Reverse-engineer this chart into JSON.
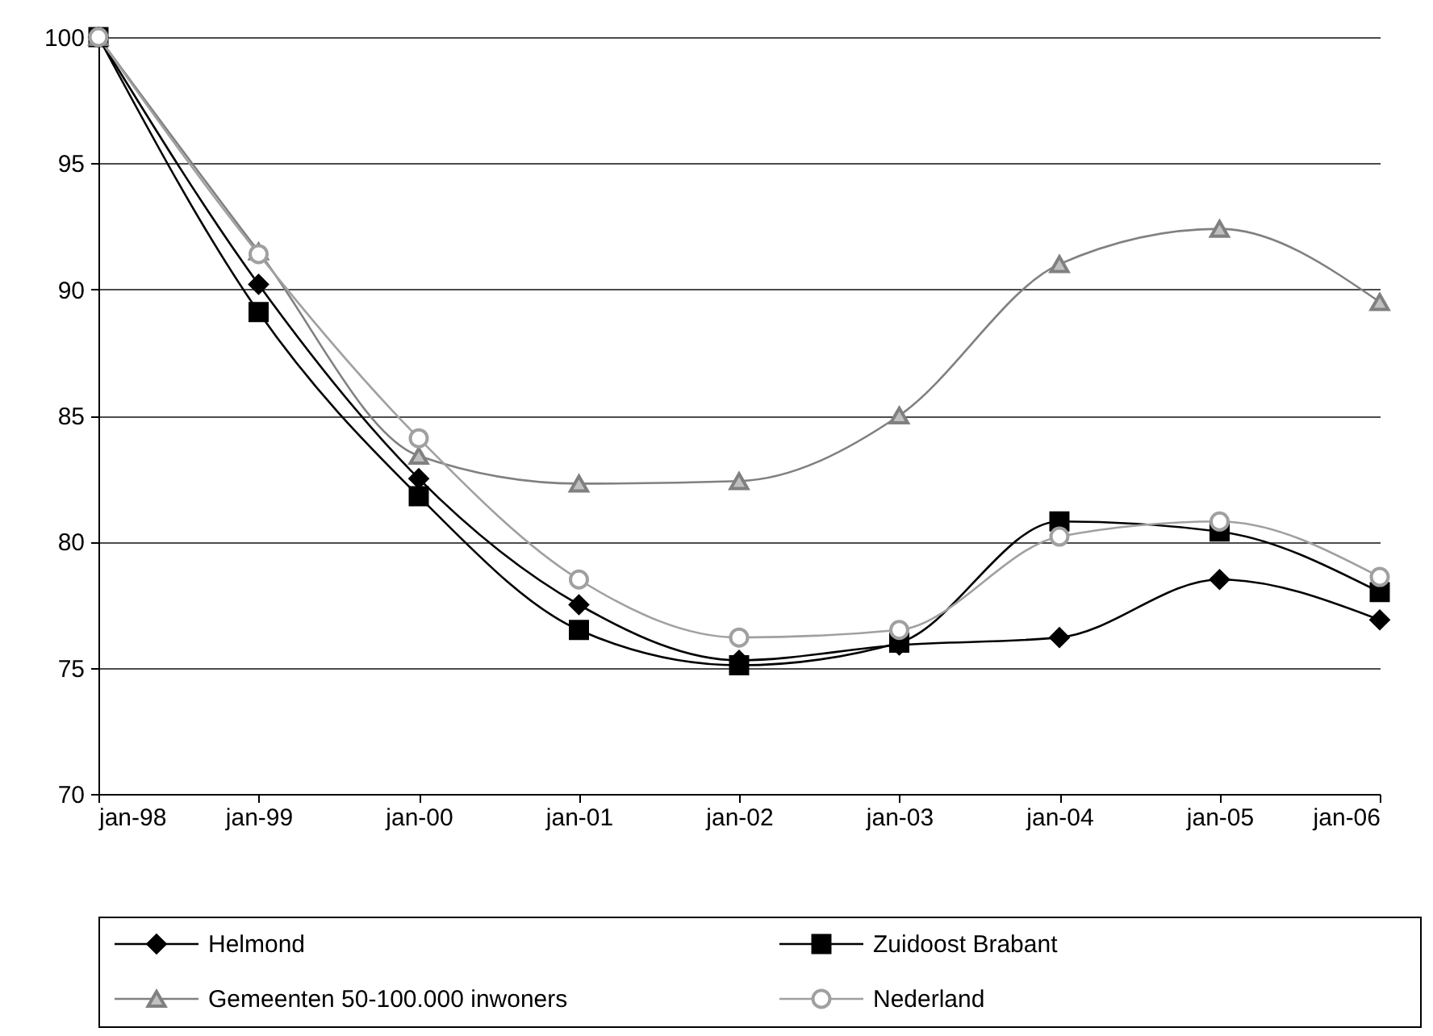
{
  "chart_data": {
    "type": "line",
    "categories": [
      "jan-98",
      "jan-99",
      "jan-00",
      "jan-01",
      "jan-02",
      "jan-03",
      "jan-04",
      "jan-05",
      "jan-06"
    ],
    "ylim": [
      70,
      100
    ],
    "yticks": [
      70,
      75,
      80,
      85,
      90,
      95,
      100
    ],
    "grid": "y",
    "legend": "bottom",
    "series": [
      {
        "name": "Helmond",
        "color": "#000000",
        "marker": "diamond",
        "values": [
          100,
          90.2,
          82.5,
          77.5,
          75.3,
          75.9,
          76.2,
          78.5,
          76.9
        ]
      },
      {
        "name": "Zuidoost Brabant",
        "color": "#000000",
        "marker": "square",
        "values": [
          100,
          89.1,
          81.8,
          76.5,
          75.1,
          76.0,
          80.8,
          80.4,
          78.0
        ]
      },
      {
        "name": "Gemeenten 50-100.000 inwoners",
        "color": "#808080",
        "marker": "triangle",
        "values": [
          100,
          91.5,
          83.4,
          82.3,
          82.4,
          85.0,
          91.0,
          92.4,
          89.5
        ]
      },
      {
        "name": "Nederland",
        "color": "#a0a0a0",
        "marker": "circle",
        "values": [
          100,
          91.4,
          84.1,
          78.5,
          76.2,
          76.5,
          80.2,
          80.8,
          78.6
        ]
      }
    ]
  }
}
